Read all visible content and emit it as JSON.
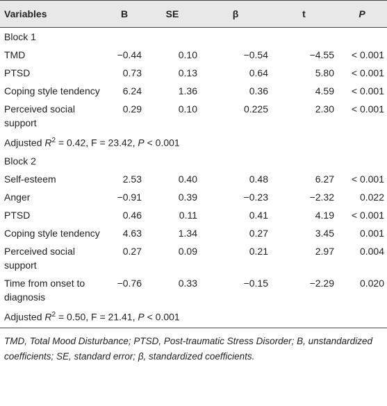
{
  "table": {
    "header": [
      "Variables",
      "B",
      "SE",
      "β",
      "t",
      "P"
    ],
    "blocks": [
      {
        "title": "Block 1",
        "rows": [
          [
            "TMD",
            "−0.44",
            "0.10",
            "−0.54",
            "−4.55",
            "< 0.001"
          ],
          [
            "PTSD",
            "0.73",
            "0.13",
            "0.64",
            "5.80",
            "< 0.001"
          ],
          [
            "Coping style tendency",
            "6.24",
            "1.36",
            "0.36",
            "4.59",
            "< 0.001"
          ],
          [
            "Perceived social support",
            "0.29",
            "0.10",
            "0.225",
            "2.30",
            "< 0.001"
          ]
        ],
        "note": [
          "Adjusted ",
          "R",
          "2",
          " = 0.42, F = 23.42, ",
          "P",
          " < 0.001"
        ]
      },
      {
        "title": "Block 2",
        "rows": [
          [
            "Self-esteem",
            "2.53",
            "0.40",
            "0.48",
            "6.27",
            "< 0.001"
          ],
          [
            "Anger",
            "−0.91",
            "0.39",
            "−0.23",
            "−2.32",
            "0.022"
          ],
          [
            "PTSD",
            "0.46",
            "0.11",
            "0.41",
            "4.19",
            "< 0.001"
          ],
          [
            "Coping style tendency",
            "4.63",
            "1.34",
            "0.27",
            "3.45",
            "0.001"
          ],
          [
            "Perceived social support",
            "0.27",
            "0.09",
            "0.21",
            "2.97",
            "0.004"
          ],
          [
            "Time from onset to diagnosis",
            "−0.76",
            "0.33",
            "−0.15",
            "−2.29",
            "0.020"
          ]
        ],
        "note": [
          "Adjusted ",
          "R",
          "2",
          " = 0.50, F = 21.41, ",
          "P",
          " < 0.001"
        ]
      }
    ],
    "footnote": "TMD, Total Mood Disturbance; PTSD, Post-traumatic Stress Disorder; B, unstandardized coefficients; SE, standard error; β, standardized coefficients."
  }
}
